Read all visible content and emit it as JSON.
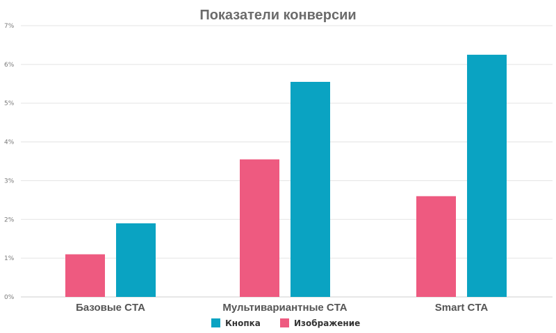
{
  "chart_data": {
    "type": "bar",
    "title": "Показатели конверсии",
    "categories": [
      "Базовые CTA",
      "Мультивариантные CTA",
      "Smart CTA"
    ],
    "series": [
      {
        "name": "Изображение",
        "color": "#ee5a80",
        "values": [
          1.1,
          3.55,
          2.6
        ]
      },
      {
        "name": "Кнопка",
        "color": "#0aa3c2",
        "values": [
          1.9,
          5.55,
          6.25
        ]
      }
    ],
    "legend_order": [
      "Кнопка",
      "Изображение"
    ],
    "y_ticks": [
      "0%",
      "1%",
      "2%",
      "3%",
      "4%",
      "5%",
      "6%",
      "7%"
    ],
    "ylim": [
      0,
      7
    ],
    "xlabel": "",
    "ylabel": "",
    "grid": true,
    "legend_position": "bottom-center"
  }
}
